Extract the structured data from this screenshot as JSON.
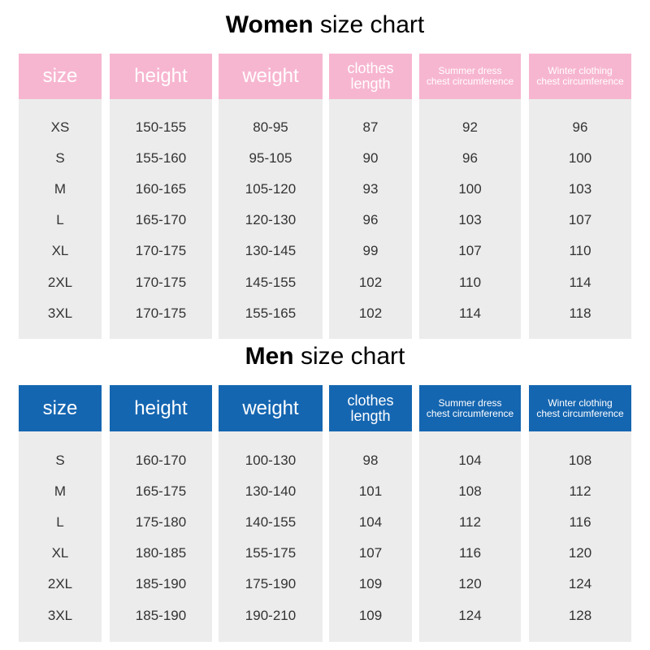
{
  "tables": [
    {
      "title_bold": "Women",
      "title_rest": "size chart",
      "headers": [
        [
          "size"
        ],
        [
          "height"
        ],
        [
          "weight"
        ],
        [
          "clothes",
          "length"
        ],
        [
          "Summer dress",
          "chest circumference"
        ],
        [
          "Winter clothing",
          "chest circumference"
        ]
      ],
      "rows": [
        [
          "XS",
          "150-155",
          "80-95",
          87,
          92,
          96
        ],
        [
          "S",
          "155-160",
          "95-105",
          90,
          96,
          100
        ],
        [
          "M",
          "160-165",
          "105-120",
          93,
          100,
          103
        ],
        [
          "L",
          "165-170",
          "120-130",
          96,
          103,
          107
        ],
        [
          "XL",
          "170-175",
          "130-145",
          99,
          107,
          110
        ],
        [
          "2XL",
          "170-175",
          "145-155",
          102,
          110,
          114
        ],
        [
          "3XL",
          "170-175",
          "155-165",
          102,
          114,
          118
        ]
      ]
    },
    {
      "title_bold": "Men",
      "title_rest": "size chart",
      "headers": [
        [
          "size"
        ],
        [
          "height"
        ],
        [
          "weight"
        ],
        [
          "clothes",
          "length"
        ],
        [
          "Summer dress",
          "chest circumference"
        ],
        [
          "Winter clothing",
          "chest circumference"
        ]
      ],
      "rows": [
        [
          "S",
          "160-170",
          "100-130",
          98,
          104,
          108
        ],
        [
          "M",
          "165-175",
          "130-140",
          101,
          108,
          112
        ],
        [
          "L",
          "175-180",
          "140-155",
          104,
          112,
          116
        ],
        [
          "XL",
          "180-185",
          "155-175",
          107,
          116,
          120
        ],
        [
          "2XL",
          "185-190",
          "175-190",
          109,
          120,
          124
        ],
        [
          "3XL",
          "185-190",
          "190-210",
          109,
          124,
          128
        ]
      ]
    }
  ]
}
